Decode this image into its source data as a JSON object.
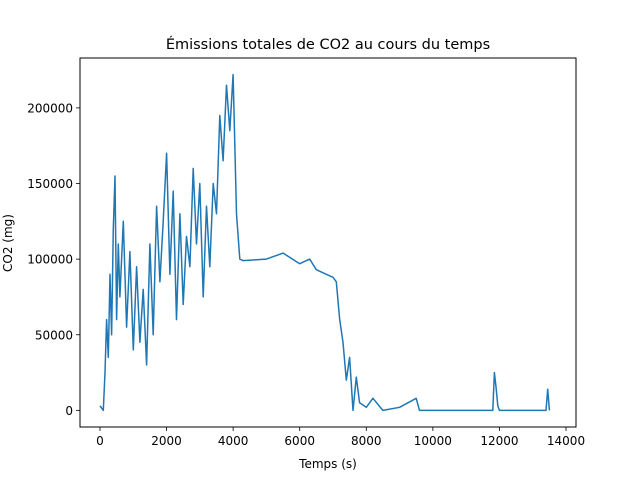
{
  "chart_data": {
    "type": "line",
    "title": "Émissions totales de CO2 au cours du temps",
    "xlabel": "Temps (s)",
    "ylabel": "CO2 (mg)",
    "xlim": [
      -600,
      14300
    ],
    "ylim": [
      -11000,
      233000
    ],
    "xticks": [
      0,
      2000,
      4000,
      6000,
      8000,
      10000,
      12000,
      14000
    ],
    "xtick_labels": [
      "0",
      "2000",
      "4000",
      "6000",
      "8000",
      "10000",
      "12000",
      "14000"
    ],
    "yticks": [
      0,
      50000,
      100000,
      150000,
      200000
    ],
    "ytick_labels": [
      "0",
      "50000",
      "100000",
      "150000",
      "200000"
    ],
    "grid": false,
    "series": [
      {
        "color": "#1f77b4",
        "x": [
          0,
          100,
          150,
          200,
          250,
          300,
          350,
          400,
          450,
          500,
          550,
          600,
          700,
          800,
          900,
          1000,
          1100,
          1200,
          1300,
          1400,
          1500,
          1600,
          1700,
          1800,
          1900,
          2000,
          2100,
          2200,
          2300,
          2400,
          2500,
          2600,
          2700,
          2800,
          2900,
          3000,
          3100,
          3200,
          3300,
          3400,
          3500,
          3600,
          3700,
          3800,
          3900,
          4000,
          4100,
          4200,
          4300,
          5000,
          5500,
          6000,
          6300,
          6500,
          6800,
          7000,
          7100,
          7200,
          7300,
          7400,
          7500,
          7600,
          7700,
          7800,
          8000,
          8200,
          8500,
          9000,
          9500,
          9600,
          10000,
          11000,
          11800,
          11850,
          11900,
          11950,
          12000,
          13000,
          13400,
          13450,
          13500
        ],
        "y": [
          3000,
          0,
          25000,
          60000,
          35000,
          90000,
          50000,
          120000,
          155000,
          60000,
          110000,
          75000,
          125000,
          55000,
          105000,
          40000,
          95000,
          45000,
          80000,
          30000,
          110000,
          50000,
          135000,
          85000,
          125000,
          170000,
          90000,
          145000,
          60000,
          130000,
          70000,
          115000,
          95000,
          160000,
          110000,
          150000,
          75000,
          135000,
          95000,
          150000,
          130000,
          195000,
          165000,
          215000,
          185000,
          222000,
          130000,
          100000,
          99000,
          100000,
          104000,
          97000,
          100000,
          93000,
          90000,
          88000,
          85000,
          60000,
          45000,
          20000,
          35000,
          0,
          22000,
          5000,
          2000,
          8000,
          0,
          2000,
          8000,
          0,
          0,
          0,
          0,
          25000,
          15000,
          3000,
          0,
          0,
          0,
          14000,
          0
        ]
      }
    ]
  }
}
